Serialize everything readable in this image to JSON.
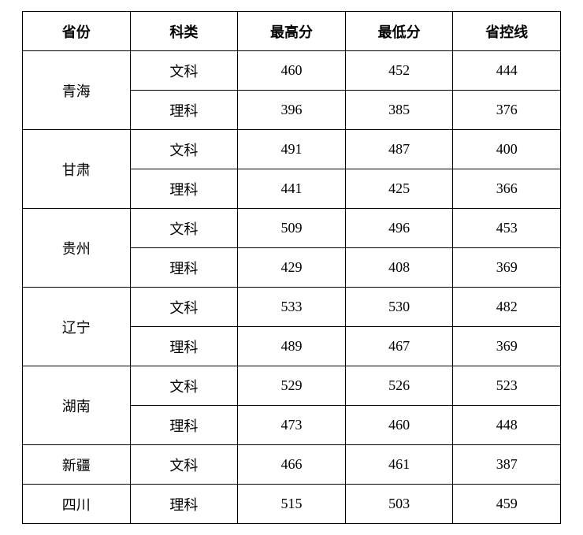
{
  "table": {
    "headers": [
      "省份",
      "科类",
      "最高分",
      "最低分",
      "省控线"
    ],
    "groups": [
      {
        "province": "青海",
        "rows": [
          {
            "subject": "文科",
            "max": "460",
            "min": "452",
            "line": "444"
          },
          {
            "subject": "理科",
            "max": "396",
            "min": "385",
            "line": "376"
          }
        ]
      },
      {
        "province": "甘肃",
        "rows": [
          {
            "subject": "文科",
            "max": "491",
            "min": "487",
            "line": "400"
          },
          {
            "subject": "理科",
            "max": "441",
            "min": "425",
            "line": "366"
          }
        ]
      },
      {
        "province": "贵州",
        "rows": [
          {
            "subject": "文科",
            "max": "509",
            "min": "496",
            "line": "453"
          },
          {
            "subject": "理科",
            "max": "429",
            "min": "408",
            "line": "369"
          }
        ]
      },
      {
        "province": "辽宁",
        "rows": [
          {
            "subject": "文科",
            "max": "533",
            "min": "530",
            "line": "482"
          },
          {
            "subject": "理科",
            "max": "489",
            "min": "467",
            "line": "369"
          }
        ]
      },
      {
        "province": "湖南",
        "rows": [
          {
            "subject": "文科",
            "max": "529",
            "min": "526",
            "line": "523"
          },
          {
            "subject": "理科",
            "max": "473",
            "min": "460",
            "line": "448"
          }
        ]
      },
      {
        "province": "新疆",
        "rows": [
          {
            "subject": "文科",
            "max": "466",
            "min": "461",
            "line": "387"
          }
        ]
      },
      {
        "province": "四川",
        "rows": [
          {
            "subject": "理科",
            "max": "515",
            "min": "503",
            "line": "459"
          }
        ]
      }
    ]
  }
}
